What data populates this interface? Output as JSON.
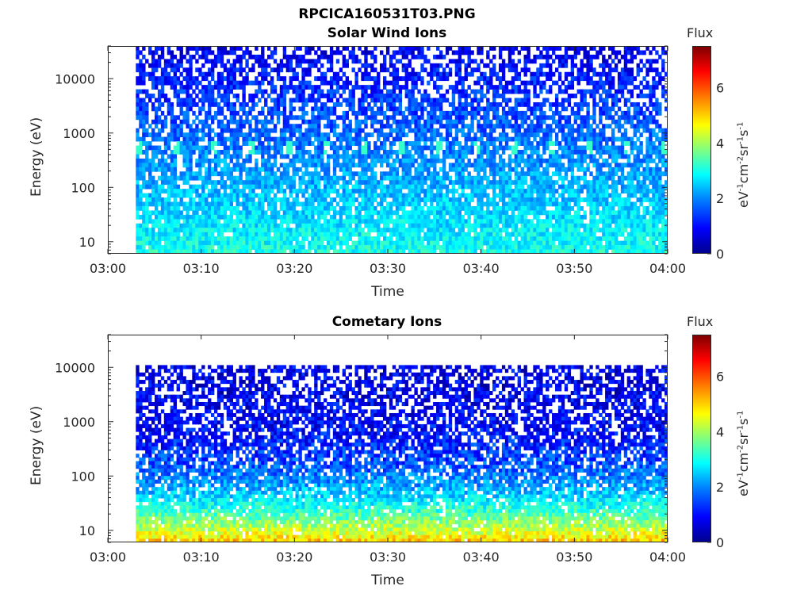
{
  "figure_title": "RPCICA160531T03.PNG",
  "chart_data": [
    {
      "type": "heatmap",
      "title": "Solar Wind Ions",
      "xlabel": "Time",
      "ylabel": "Energy (eV)",
      "x_tick_labels": [
        "03:00",
        "03:10",
        "03:20",
        "03:30",
        "03:40",
        "03:50",
        "04:00"
      ],
      "x_range": [
        "03:00",
        "04:00"
      ],
      "y_scale": "log",
      "y_range": [
        6,
        40000
      ],
      "y_ticks": [
        10,
        100,
        1000,
        10000
      ],
      "y_tick_labels": [
        "10",
        "100",
        "1000",
        "10000"
      ],
      "data_x_range": [
        "03:03",
        "04:00"
      ],
      "data_y_range": [
        6,
        40000
      ],
      "colorbar": {
        "title": "Flux",
        "range": [
          0,
          7.5
        ],
        "ticks": [
          0,
          2,
          4,
          6
        ],
        "tick_labels": [
          "0",
          "2",
          "4",
          "6"
        ]
      }
    },
    {
      "type": "heatmap",
      "title": "Cometary Ions",
      "xlabel": "Time",
      "ylabel": "Energy (eV)",
      "x_tick_labels": [
        "03:00",
        "03:10",
        "03:20",
        "03:30",
        "03:40",
        "03:50",
        "04:00"
      ],
      "x_range": [
        "03:00",
        "04:00"
      ],
      "y_scale": "log",
      "y_range": [
        6,
        40000
      ],
      "y_ticks": [
        10,
        100,
        1000,
        10000
      ],
      "y_tick_labels": [
        "10",
        "100",
        "1000",
        "10000"
      ],
      "data_x_range": [
        "03:03",
        "04:00"
      ],
      "data_y_range": [
        6,
        11000
      ],
      "colorbar": {
        "title": "Flux",
        "range": [
          0,
          7.5
        ],
        "ticks": [
          0,
          2,
          4,
          6
        ],
        "tick_labels": [
          "0",
          "2",
          "4",
          "6"
        ]
      }
    }
  ]
}
